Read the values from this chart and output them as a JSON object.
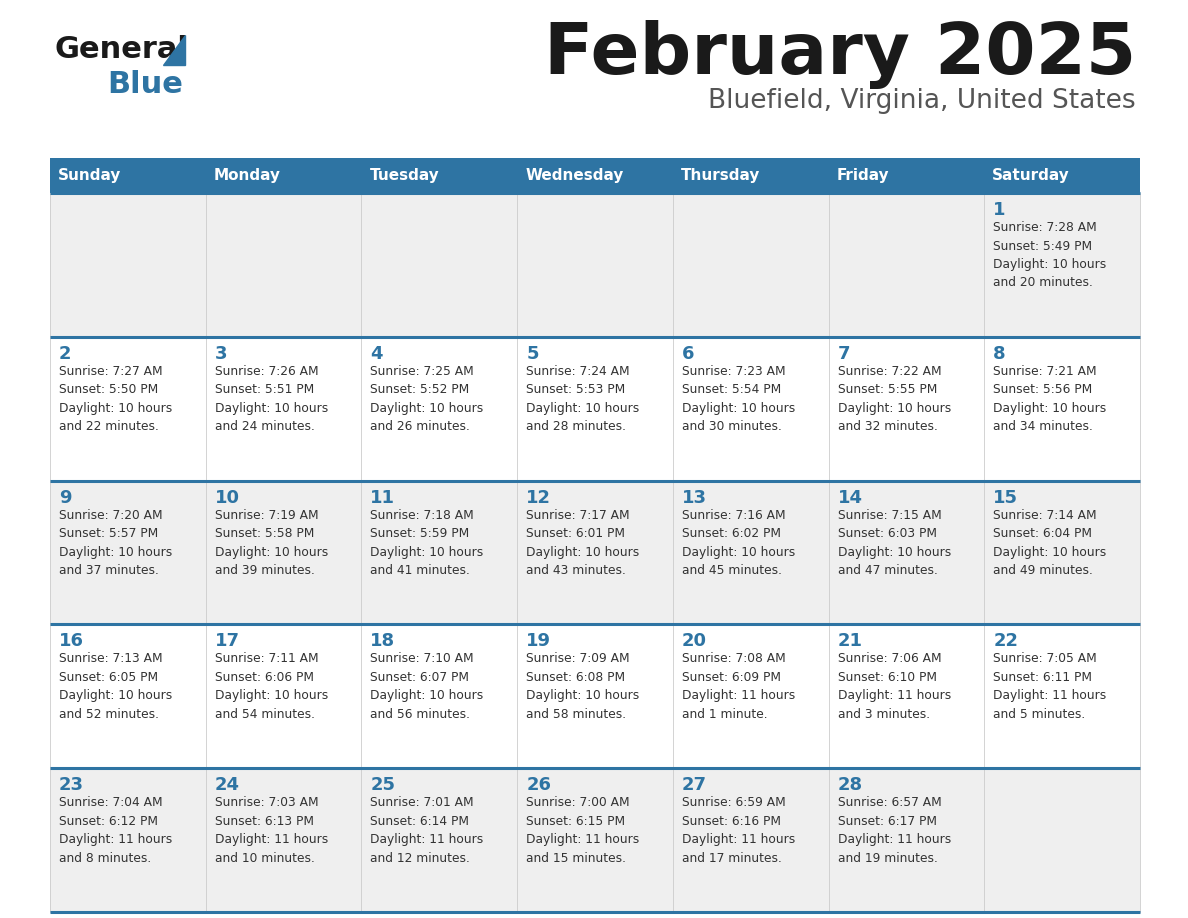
{
  "title": "February 2025",
  "subtitle": "Bluefield, Virginia, United States",
  "header_bg": "#2E74A3",
  "header_text_color": "#FFFFFF",
  "cell_bg_odd": "#EFEFEF",
  "cell_bg_even": "#FFFFFF",
  "day_number_color": "#2E74A3",
  "text_color": "#333333",
  "border_color": "#2E74A3",
  "logo_general_color": "#1a1a1a",
  "logo_blue_color": "#2E74A3",
  "logo_triangle_color": "#2E74A3",
  "title_color": "#1a1a1a",
  "subtitle_color": "#555555",
  "days_of_week": [
    "Sunday",
    "Monday",
    "Tuesday",
    "Wednesday",
    "Thursday",
    "Friday",
    "Saturday"
  ],
  "weeks": [
    [
      {
        "day": null,
        "info": null
      },
      {
        "day": null,
        "info": null
      },
      {
        "day": null,
        "info": null
      },
      {
        "day": null,
        "info": null
      },
      {
        "day": null,
        "info": null
      },
      {
        "day": null,
        "info": null
      },
      {
        "day": 1,
        "info": "Sunrise: 7:28 AM\nSunset: 5:49 PM\nDaylight: 10 hours\nand 20 minutes."
      }
    ],
    [
      {
        "day": 2,
        "info": "Sunrise: 7:27 AM\nSunset: 5:50 PM\nDaylight: 10 hours\nand 22 minutes."
      },
      {
        "day": 3,
        "info": "Sunrise: 7:26 AM\nSunset: 5:51 PM\nDaylight: 10 hours\nand 24 minutes."
      },
      {
        "day": 4,
        "info": "Sunrise: 7:25 AM\nSunset: 5:52 PM\nDaylight: 10 hours\nand 26 minutes."
      },
      {
        "day": 5,
        "info": "Sunrise: 7:24 AM\nSunset: 5:53 PM\nDaylight: 10 hours\nand 28 minutes."
      },
      {
        "day": 6,
        "info": "Sunrise: 7:23 AM\nSunset: 5:54 PM\nDaylight: 10 hours\nand 30 minutes."
      },
      {
        "day": 7,
        "info": "Sunrise: 7:22 AM\nSunset: 5:55 PM\nDaylight: 10 hours\nand 32 minutes."
      },
      {
        "day": 8,
        "info": "Sunrise: 7:21 AM\nSunset: 5:56 PM\nDaylight: 10 hours\nand 34 minutes."
      }
    ],
    [
      {
        "day": 9,
        "info": "Sunrise: 7:20 AM\nSunset: 5:57 PM\nDaylight: 10 hours\nand 37 minutes."
      },
      {
        "day": 10,
        "info": "Sunrise: 7:19 AM\nSunset: 5:58 PM\nDaylight: 10 hours\nand 39 minutes."
      },
      {
        "day": 11,
        "info": "Sunrise: 7:18 AM\nSunset: 5:59 PM\nDaylight: 10 hours\nand 41 minutes."
      },
      {
        "day": 12,
        "info": "Sunrise: 7:17 AM\nSunset: 6:01 PM\nDaylight: 10 hours\nand 43 minutes."
      },
      {
        "day": 13,
        "info": "Sunrise: 7:16 AM\nSunset: 6:02 PM\nDaylight: 10 hours\nand 45 minutes."
      },
      {
        "day": 14,
        "info": "Sunrise: 7:15 AM\nSunset: 6:03 PM\nDaylight: 10 hours\nand 47 minutes."
      },
      {
        "day": 15,
        "info": "Sunrise: 7:14 AM\nSunset: 6:04 PM\nDaylight: 10 hours\nand 49 minutes."
      }
    ],
    [
      {
        "day": 16,
        "info": "Sunrise: 7:13 AM\nSunset: 6:05 PM\nDaylight: 10 hours\nand 52 minutes."
      },
      {
        "day": 17,
        "info": "Sunrise: 7:11 AM\nSunset: 6:06 PM\nDaylight: 10 hours\nand 54 minutes."
      },
      {
        "day": 18,
        "info": "Sunrise: 7:10 AM\nSunset: 6:07 PM\nDaylight: 10 hours\nand 56 minutes."
      },
      {
        "day": 19,
        "info": "Sunrise: 7:09 AM\nSunset: 6:08 PM\nDaylight: 10 hours\nand 58 minutes."
      },
      {
        "day": 20,
        "info": "Sunrise: 7:08 AM\nSunset: 6:09 PM\nDaylight: 11 hours\nand 1 minute."
      },
      {
        "day": 21,
        "info": "Sunrise: 7:06 AM\nSunset: 6:10 PM\nDaylight: 11 hours\nand 3 minutes."
      },
      {
        "day": 22,
        "info": "Sunrise: 7:05 AM\nSunset: 6:11 PM\nDaylight: 11 hours\nand 5 minutes."
      }
    ],
    [
      {
        "day": 23,
        "info": "Sunrise: 7:04 AM\nSunset: 6:12 PM\nDaylight: 11 hours\nand 8 minutes."
      },
      {
        "day": 24,
        "info": "Sunrise: 7:03 AM\nSunset: 6:13 PM\nDaylight: 11 hours\nand 10 minutes."
      },
      {
        "day": 25,
        "info": "Sunrise: 7:01 AM\nSunset: 6:14 PM\nDaylight: 11 hours\nand 12 minutes."
      },
      {
        "day": 26,
        "info": "Sunrise: 7:00 AM\nSunset: 6:15 PM\nDaylight: 11 hours\nand 15 minutes."
      },
      {
        "day": 27,
        "info": "Sunrise: 6:59 AM\nSunset: 6:16 PM\nDaylight: 11 hours\nand 17 minutes."
      },
      {
        "day": 28,
        "info": "Sunrise: 6:57 AM\nSunset: 6:17 PM\nDaylight: 11 hours\nand 19 minutes."
      },
      {
        "day": null,
        "info": null
      }
    ]
  ]
}
